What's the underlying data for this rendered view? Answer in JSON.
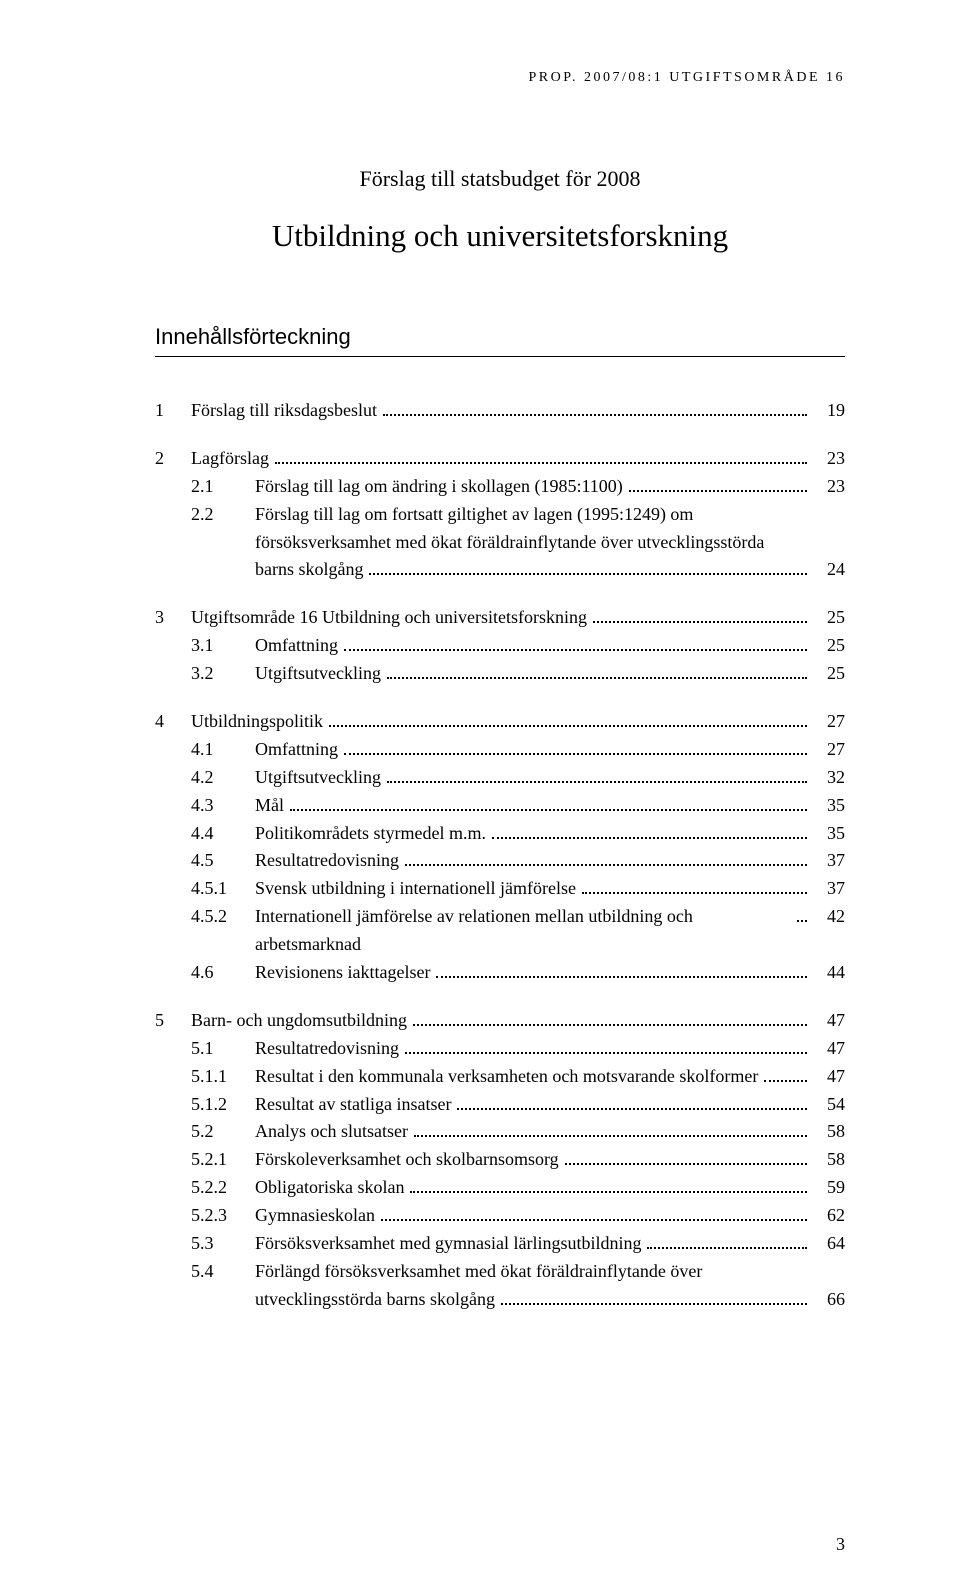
{
  "header": "PROP. 2007/08:1 UTGIFTSOMRÅDE 16",
  "subtitle": "Förslag till statsbudget för 2008",
  "title": "Utbildning och universitetsforskning",
  "toc_heading": "Innehållsförteckning",
  "page_number": "3",
  "sections": [
    {
      "num": "1",
      "title": "Förslag till riksdagsbeslut",
      "page": "19",
      "items": []
    },
    {
      "num": "2",
      "title": "Lagförslag",
      "page": "23",
      "items": [
        {
          "num": "2.1",
          "title": "Förslag till lag om ändring i skollagen (1985:1100)",
          "page": "23"
        },
        {
          "num": "2.2",
          "title": "Förslag till lag om fortsatt giltighet av lagen (1995:1249) om försöksverksamhet med ökat föräldrainflytande över utvecklingsstörda barns skolgång",
          "page": "24"
        }
      ]
    },
    {
      "num": "3",
      "title": "Utgiftsområde 16 Utbildning och universitetsforskning",
      "page": "25",
      "items": [
        {
          "num": "3.1",
          "title": "Omfattning",
          "page": "25"
        },
        {
          "num": "3.2",
          "title": "Utgiftsutveckling",
          "page": "25"
        }
      ]
    },
    {
      "num": "4",
      "title": "Utbildningspolitik",
      "page": "27",
      "items": [
        {
          "num": "4.1",
          "title": "Omfattning",
          "page": "27"
        },
        {
          "num": "4.2",
          "title": "Utgiftsutveckling",
          "page": "32"
        },
        {
          "num": "4.3",
          "title": "Mål",
          "page": "35"
        },
        {
          "num": "4.4",
          "title": "Politikområdets styrmedel m.m.",
          "page": "35"
        },
        {
          "num": "4.5",
          "title": "Resultatredovisning",
          "page": "37"
        },
        {
          "num": "4.5.1",
          "title": "Svensk utbildning i internationell jämförelse",
          "page": "37"
        },
        {
          "num": "4.5.2",
          "title": "Internationell jämförelse av relationen mellan utbildning och arbetsmarknad",
          "page": "42"
        },
        {
          "num": "4.6",
          "title": "Revisionens iakttagelser",
          "page": "44"
        }
      ]
    },
    {
      "num": "5",
      "title": "Barn- och ungdomsutbildning",
      "page": "47",
      "items": [
        {
          "num": "5.1",
          "title": "Resultatredovisning",
          "page": "47"
        },
        {
          "num": "5.1.1",
          "title": "Resultat i den kommunala verksamheten och motsvarande skolformer",
          "page": "47"
        },
        {
          "num": "5.1.2",
          "title": "Resultat av statliga insatser",
          "page": "54"
        },
        {
          "num": "5.2",
          "title": "Analys och slutsatser",
          "page": "58"
        },
        {
          "num": "5.2.1",
          "title": "Förskoleverksamhet och skolbarnsomsorg",
          "page": "58"
        },
        {
          "num": "5.2.2",
          "title": "Obligatoriska skolan",
          "page": "59"
        },
        {
          "num": "5.2.3",
          "title": "Gymnasieskolan",
          "page": "62"
        },
        {
          "num": "5.3",
          "title": "Försöksverksamhet med gymnasial lärlingsutbildning",
          "page": "64"
        },
        {
          "num": "5.4",
          "title": "Förlängd försöksverksamhet med ökat föräldrainflytande över utvecklingsstörda barns skolgång",
          "page": "66"
        }
      ]
    }
  ]
}
